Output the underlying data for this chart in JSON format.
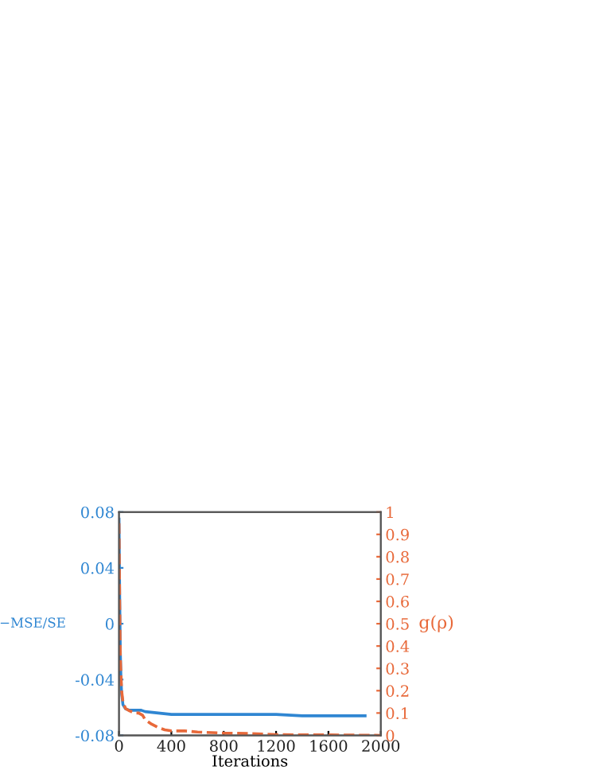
{
  "chart_data": {
    "type": "line",
    "xlabel": "Iterations",
    "ylabel": "−MSE/SE",
    "y2label": "g(ρ)",
    "xlim": [
      0,
      2000
    ],
    "xticks": [
      0,
      400,
      800,
      1200,
      1600,
      2000
    ],
    "ylim": [
      -0.08,
      0.08
    ],
    "yticks": [
      {
        "value": -0.08,
        "label": "-0.08"
      },
      {
        "value": -0.04,
        "label": "-0.04"
      },
      0,
      0.04,
      0.08
    ],
    "y2lim": [
      0,
      1
    ],
    "y2ticks": [
      0,
      0.1,
      0.2,
      0.3,
      0.4,
      0.5,
      0.6,
      0.7,
      0.8,
      0.9,
      1
    ],
    "grid": false,
    "legend": false,
    "series": [
      {
        "color": "#2f86d2",
        "line_style": "solid",
        "x": [
          0,
          5,
          10,
          15,
          20,
          30,
          50,
          80,
          120,
          170,
          200,
          300,
          400,
          600,
          800,
          1000,
          1200,
          1400,
          1600,
          1880
        ],
        "values": [
          0.075,
          0.02,
          -0.02,
          -0.04,
          -0.05,
          -0.058,
          -0.061,
          -0.062,
          -0.062,
          -0.062,
          -0.063,
          -0.064,
          -0.065,
          -0.065,
          -0.065,
          -0.065,
          -0.065,
          -0.066,
          -0.066,
          -0.066
        ]
      },
      {
        "color": "#e8693a",
        "axis": "y2",
        "line_style": "dashed",
        "x": [
          0,
          5,
          10,
          20,
          30,
          50,
          80,
          120,
          150,
          180,
          200,
          250,
          300,
          350,
          400,
          500,
          600,
          800,
          1000,
          1200,
          1600,
          2000
        ],
        "values": [
          0.95,
          0.6,
          0.35,
          0.2,
          0.15,
          0.12,
          0.11,
          0.1,
          0.1,
          0.09,
          0.07,
          0.05,
          0.035,
          0.025,
          0.02,
          0.02,
          0.015,
          0.01,
          0.008,
          0.003,
          0.002,
          0.0
        ]
      }
    ]
  }
}
